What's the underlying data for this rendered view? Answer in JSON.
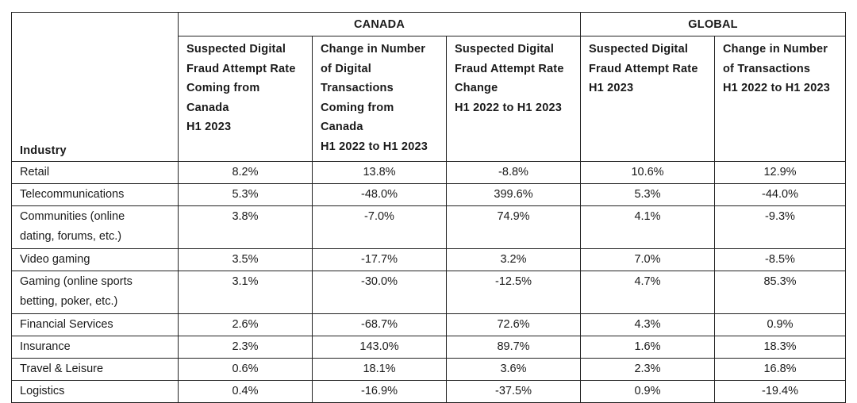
{
  "groups": {
    "canada": "CANADA",
    "global": "GLOBAL"
  },
  "headers": {
    "industry": "Industry",
    "c1": [
      "Suspected Digital",
      "Fraud Attempt Rate",
      "Coming from",
      "Canada",
      "H1 2023"
    ],
    "c2": [
      "Change in Number",
      "of Digital",
      "Transactions",
      "Coming from",
      "Canada",
      "H1 2022 to H1 2023"
    ],
    "c3": [
      "Suspected Digital",
      "Fraud Attempt Rate",
      "Change",
      "H1 2022 to H1 2023"
    ],
    "g1": [
      "Suspected Digital",
      "Fraud Attempt Rate",
      "H1 2023"
    ],
    "g2": [
      "Change in Number",
      "of Transactions",
      "H1 2022 to H1 2023"
    ]
  },
  "rows": [
    {
      "industry": [
        "Retail"
      ],
      "values": [
        "8.2%",
        "13.8%",
        "-8.8%",
        "10.6%",
        "12.9%"
      ]
    },
    {
      "industry": [
        "Telecommunications"
      ],
      "values": [
        "5.3%",
        "-48.0%",
        "399.6%",
        "5.3%",
        "-44.0%"
      ]
    },
    {
      "industry": [
        "Communities (online",
        "dating, forums, etc.)"
      ],
      "values": [
        "3.8%",
        "-7.0%",
        "74.9%",
        "4.1%",
        "-9.3%"
      ]
    },
    {
      "industry": [
        "Video gaming"
      ],
      "values": [
        "3.5%",
        "-17.7%",
        "3.2%",
        "7.0%",
        "-8.5%"
      ]
    },
    {
      "industry": [
        "Gaming (online sports",
        "betting, poker, etc.)"
      ],
      "values": [
        "3.1%",
        "-30.0%",
        "-12.5%",
        "4.7%",
        "85.3%"
      ]
    },
    {
      "industry": [
        "Financial Services"
      ],
      "values": [
        "2.6%",
        "-68.7%",
        "72.6%",
        "4.3%",
        "0.9%"
      ]
    },
    {
      "industry": [
        "Insurance"
      ],
      "values": [
        "2.3%",
        "143.0%",
        "89.7%",
        "1.6%",
        "18.3%"
      ]
    },
    {
      "industry": [
        "Travel & Leisure"
      ],
      "values": [
        "0.6%",
        "18.1%",
        "3.6%",
        "2.3%",
        "16.8%"
      ]
    },
    {
      "industry": [
        "Logistics"
      ],
      "values": [
        "0.4%",
        "-16.9%",
        "-37.5%",
        "0.9%",
        "-19.4%"
      ]
    }
  ]
}
